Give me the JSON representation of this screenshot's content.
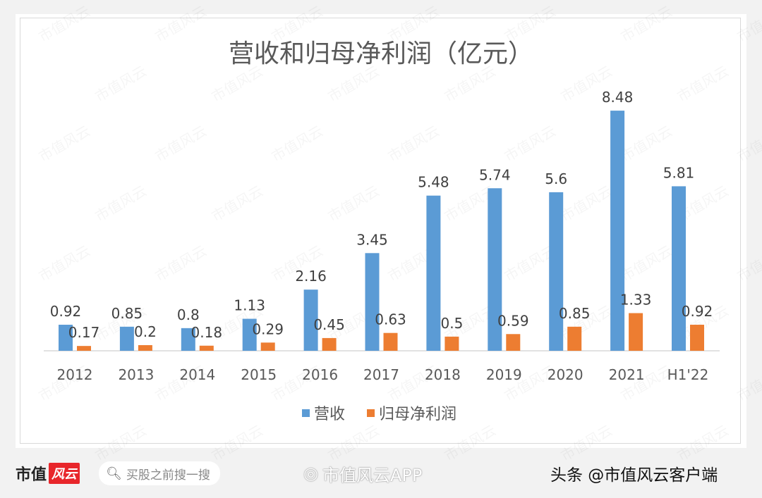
{
  "chart_data": {
    "type": "bar",
    "title": "营收和归母净利润（亿元）",
    "categories": [
      "2012",
      "2013",
      "2014",
      "2015",
      "2016",
      "2017",
      "2018",
      "2019",
      "2020",
      "2021",
      "H1'22"
    ],
    "series": [
      {
        "name": "营收",
        "color": "#5b9bd5",
        "values": [
          0.92,
          0.85,
          0.8,
          1.13,
          2.16,
          3.45,
          5.48,
          5.74,
          5.6,
          8.48,
          5.81
        ],
        "labels": [
          "0.92",
          "0.85",
          "0.8",
          "1.13",
          "2.16",
          "3.45",
          "5.48",
          "5.74",
          "5.6",
          "8.48",
          "5.81"
        ]
      },
      {
        "name": "归母净利润",
        "color": "#ed7d31",
        "values": [
          0.17,
          0.2,
          0.18,
          0.29,
          0.45,
          0.63,
          0.5,
          0.59,
          0.85,
          1.33,
          0.92
        ],
        "labels": [
          "0.17",
          "0.2",
          "0.18",
          "0.29",
          "0.45",
          "0.63",
          "0.5",
          "0.59",
          "0.85",
          "1.33",
          "0.92"
        ]
      }
    ],
    "ylim": [
      0,
      8.5
    ],
    "grid": false,
    "legend": "bottom",
    "data_labels": true
  },
  "watermark": "市值风云",
  "footer": {
    "brand": "市值",
    "brand_logo": "风云",
    "search_placeholder": "买股之前搜一搜",
    "weibo": "市值风云APP",
    "toutiao": "头条 @市值风云客户端"
  }
}
